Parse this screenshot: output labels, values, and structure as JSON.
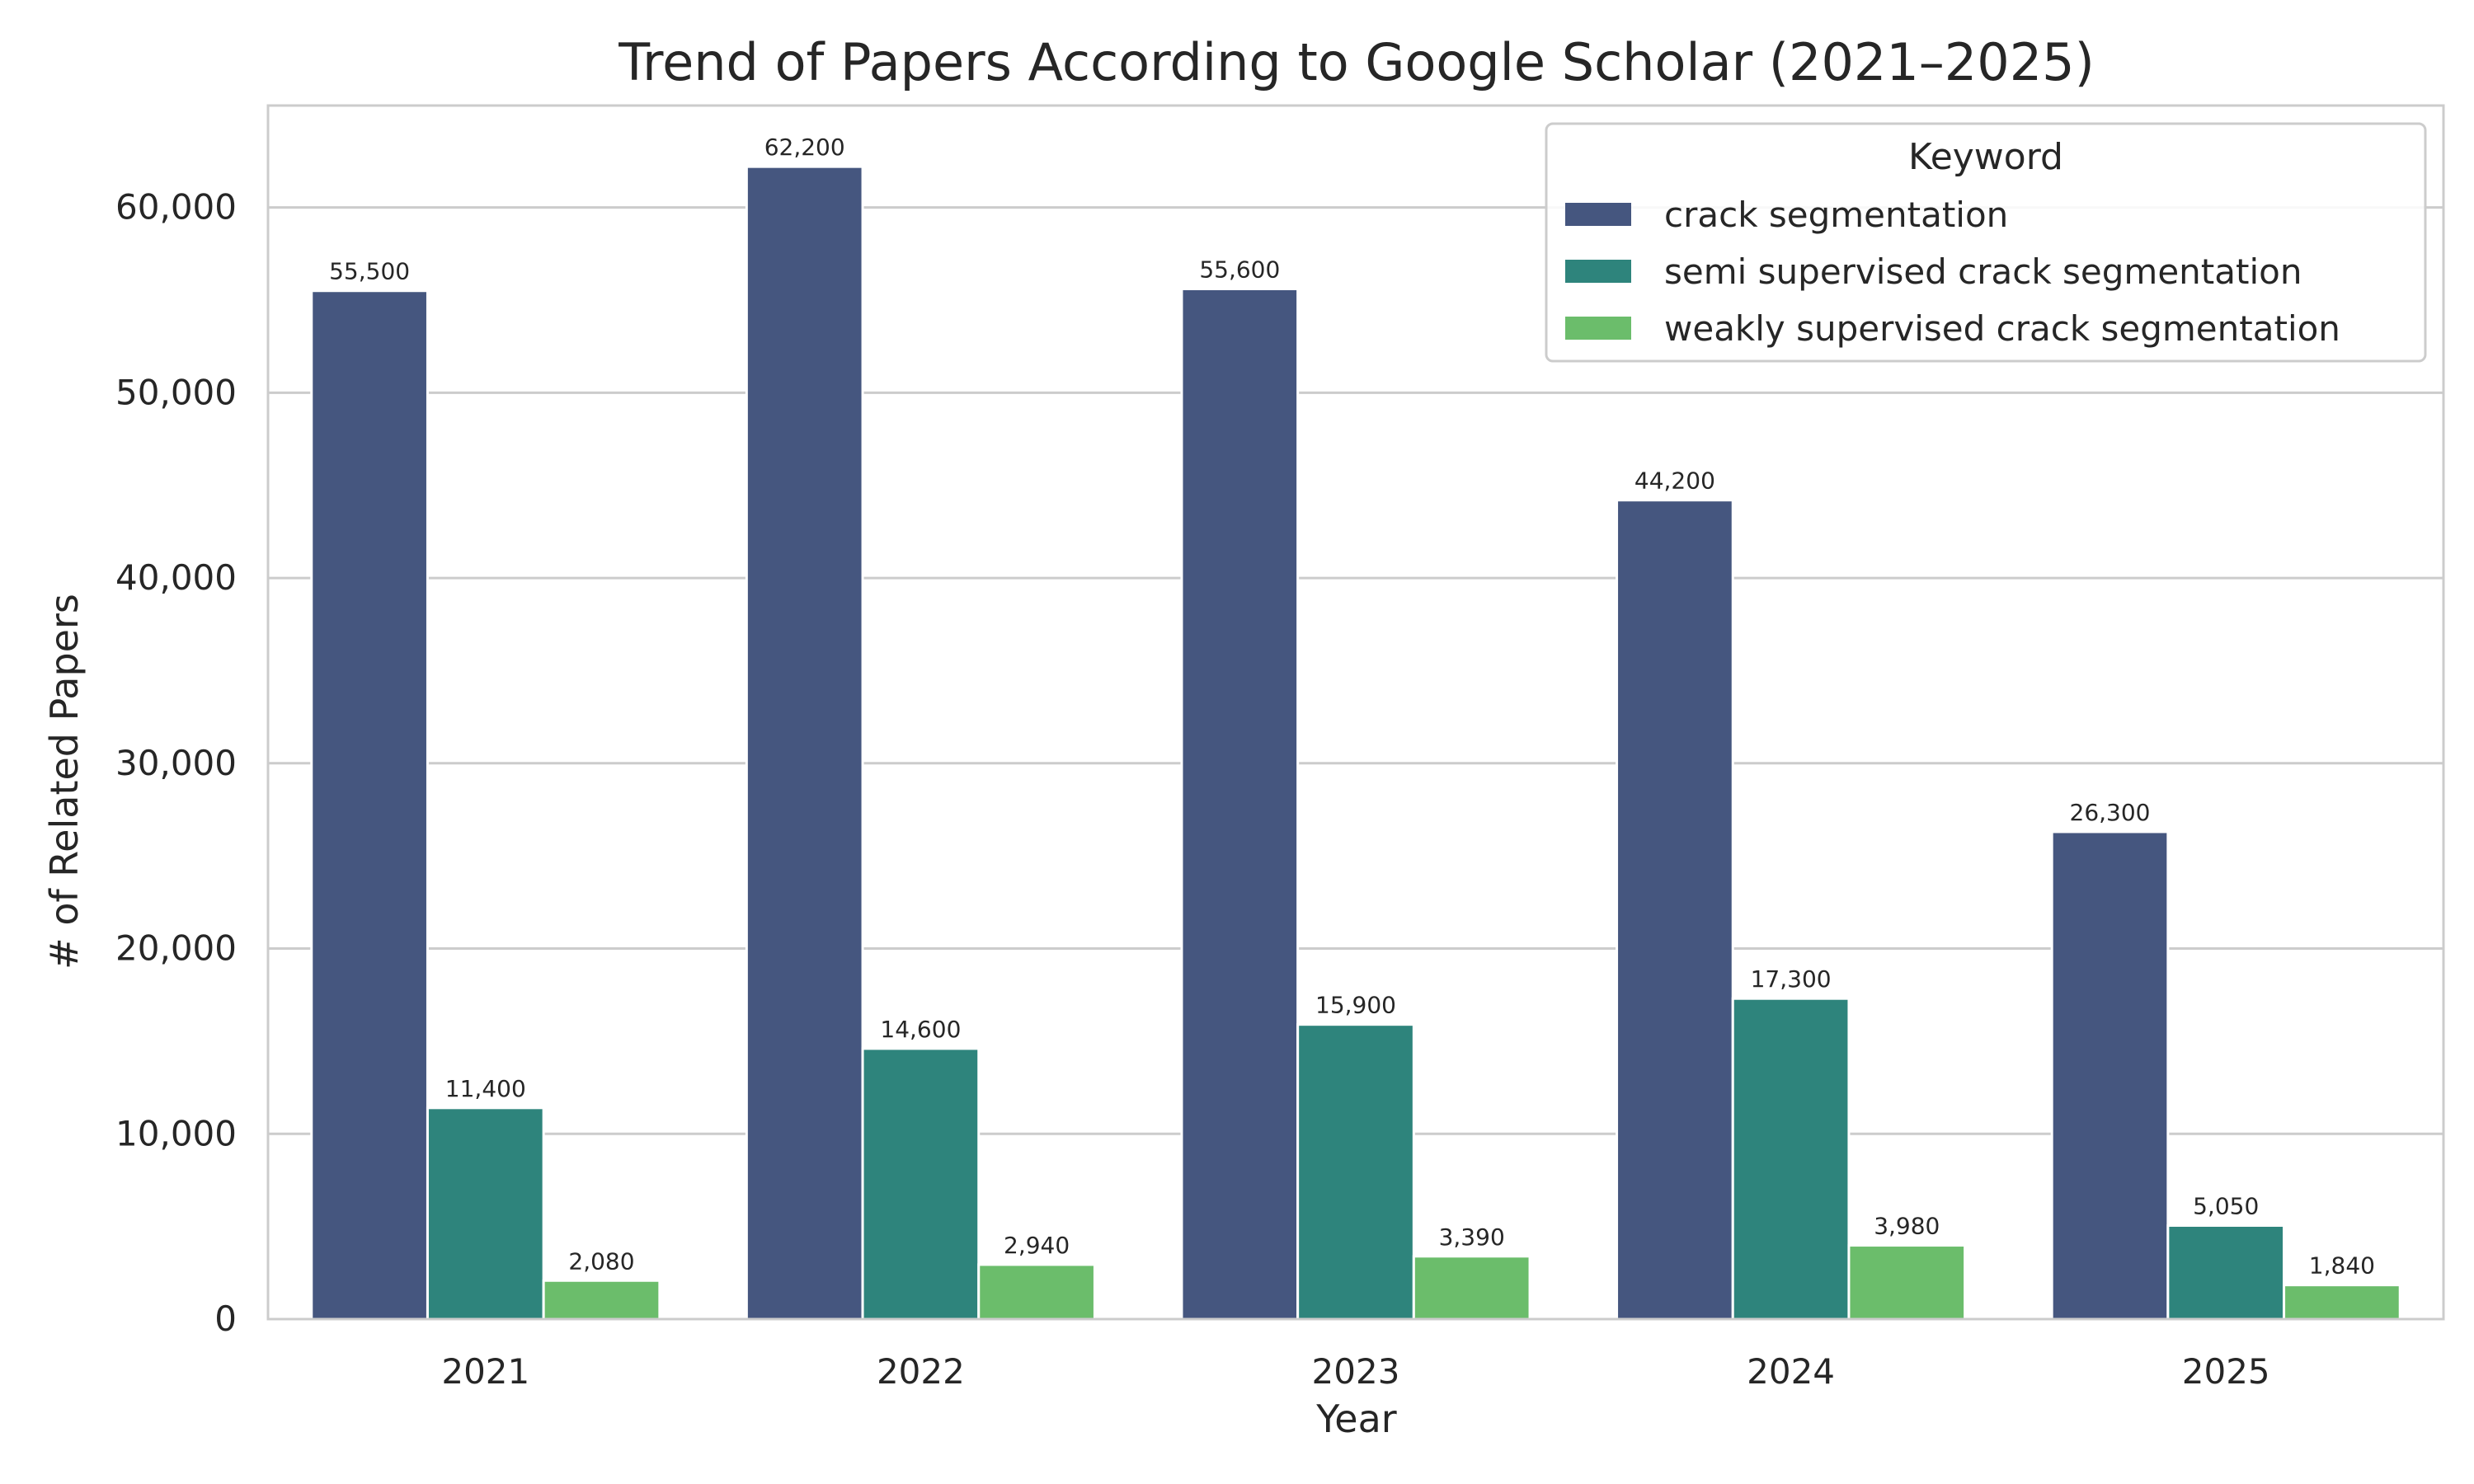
{
  "chart_data": {
    "type": "bar",
    "title": "Trend of Papers According to Google Scholar (2021–2025)",
    "xlabel": "Year",
    "ylabel": "# of Related Papers",
    "categories": [
      "2021",
      "2022",
      "2023",
      "2024",
      "2025"
    ],
    "series": [
      {
        "name": "crack segmentation",
        "color": "#45567f",
        "values": [
          55500,
          62200,
          55600,
          44200,
          26300
        ],
        "labels": [
          "55,500",
          "62,200",
          "55,600",
          "44,200",
          "26,300"
        ]
      },
      {
        "name": "semi supervised crack segmentation",
        "color": "#2e847c",
        "values": [
          11400,
          14600,
          15900,
          17300,
          5050
        ],
        "labels": [
          "11,400",
          "14,600",
          "15,900",
          "17,300",
          "5,050"
        ]
      },
      {
        "name": "weakly supervised crack segmentation",
        "color": "#6bbd6b",
        "values": [
          2080,
          2940,
          3390,
          3980,
          1840
        ],
        "labels": [
          "2,080",
          "2,940",
          "3,390",
          "3,980",
          "1,840"
        ]
      }
    ],
    "ylim": [
      0,
      65500
    ],
    "yticks": [
      0,
      10000,
      20000,
      30000,
      40000,
      50000,
      60000
    ],
    "ytick_labels": [
      "0",
      "10,000",
      "20,000",
      "30,000",
      "40,000",
      "50,000",
      "60,000"
    ],
    "grid": true,
    "legend": {
      "title": "Keyword",
      "position": "top-right"
    }
  }
}
